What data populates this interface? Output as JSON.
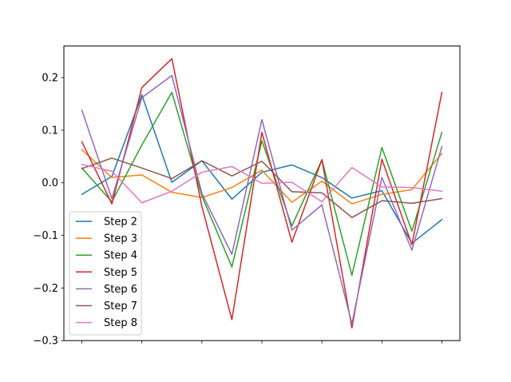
{
  "chart_data": {
    "type": "line",
    "title": "",
    "xlabel": "",
    "ylabel": "",
    "x": [
      0,
      1,
      2,
      3,
      4,
      5,
      6,
      7,
      8,
      9,
      10,
      11,
      12
    ],
    "xticks": [
      0,
      2,
      4,
      6,
      8,
      10,
      12
    ],
    "xlim": [
      -0.6,
      12.6
    ],
    "ylim": [
      -0.3,
      0.26
    ],
    "yticks": [
      -0.3,
      -0.2,
      -0.1,
      0.0,
      0.1,
      0.2
    ],
    "ytick_labels": [
      "−0.3",
      "−0.2",
      "−0.1",
      "0.0",
      "0.1",
      "0.2"
    ],
    "grid": false,
    "legend_position": "lower-left",
    "series": [
      {
        "name": "Step 2",
        "color": "#1f77b4",
        "values": [
          -0.022,
          0.012,
          0.167,
          0.001,
          0.042,
          -0.031,
          0.02,
          0.034,
          0.01,
          -0.029,
          -0.015,
          -0.115,
          -0.07
        ]
      },
      {
        "name": "Step 3",
        "color": "#ff7f0e",
        "values": [
          0.063,
          0.01,
          0.015,
          -0.018,
          -0.028,
          -0.009,
          0.024,
          -0.037,
          0.003,
          -0.04,
          -0.022,
          -0.013,
          0.056
        ]
      },
      {
        "name": "Step 4",
        "color": "#2ca02c",
        "values": [
          0.028,
          -0.036,
          0.072,
          0.172,
          -0.025,
          -0.16,
          0.08,
          -0.082,
          0.044,
          -0.176,
          0.067,
          -0.092,
          0.096
        ]
      },
      {
        "name": "Step 5",
        "color": "#d62728",
        "values": [
          0.078,
          -0.04,
          0.181,
          0.236,
          -0.045,
          -0.26,
          0.096,
          -0.113,
          0.044,
          -0.276,
          0.045,
          -0.118,
          0.172
        ]
      },
      {
        "name": "Step 6",
        "color": "#9467bd",
        "values": [
          0.138,
          -0.03,
          0.162,
          0.204,
          -0.02,
          -0.136,
          0.12,
          -0.09,
          -0.042,
          -0.268,
          0.01,
          -0.128,
          0.069
        ]
      },
      {
        "name": "Step 7",
        "color": "#8c564b",
        "values": [
          0.027,
          0.047,
          0.028,
          0.008,
          0.042,
          0.013,
          0.041,
          -0.017,
          -0.019,
          -0.066,
          -0.034,
          -0.039,
          -0.03
        ]
      },
      {
        "name": "Step 8",
        "color": "#e377c2",
        "values": [
          0.035,
          0.022,
          -0.038,
          -0.016,
          0.02,
          0.031,
          -0.001,
          0.001,
          -0.036,
          0.029,
          -0.008,
          -0.009,
          -0.016
        ]
      }
    ]
  }
}
